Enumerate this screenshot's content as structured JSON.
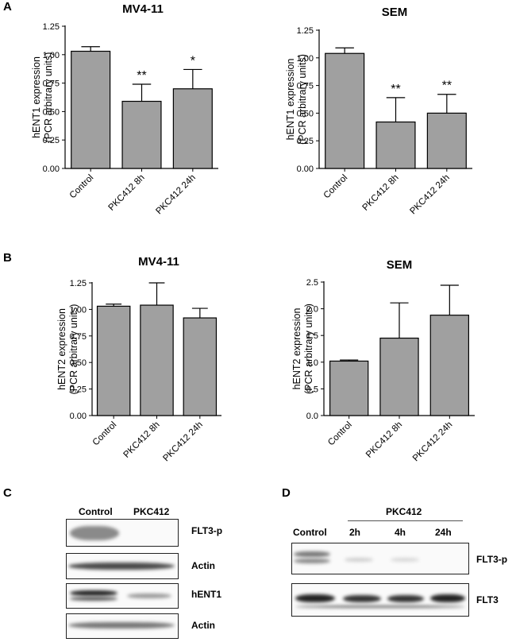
{
  "panels": {
    "A": "A",
    "B": "B",
    "C": "C",
    "D": "D"
  },
  "chart_data": [
    {
      "type": "bar",
      "title": "MV4-11",
      "categories": [
        "Control",
        "PKC412 8h",
        "PKC412 24h"
      ],
      "values": [
        1.03,
        0.59,
        0.7
      ],
      "errors": [
        0.04,
        0.15,
        0.17
      ],
      "significance": [
        "",
        "**",
        "*"
      ],
      "ylabel": "hENT1 expression",
      "ylabel2": "(PCR arbitrary units)",
      "ylim": [
        0,
        1.25
      ],
      "yticks": [
        "0.00",
        "0.25",
        "0.50",
        "0.75",
        "1.00",
        "1.25"
      ],
      "bar_color": "#a0a0a0"
    },
    {
      "type": "bar",
      "title": "SEM",
      "categories": [
        "Control",
        "PKC412 8h",
        "PKC412 24h"
      ],
      "values": [
        1.04,
        0.42,
        0.5
      ],
      "errors": [
        0.05,
        0.22,
        0.17
      ],
      "significance": [
        "",
        "**",
        "**"
      ],
      "ylabel": "hENT1 expression",
      "ylabel2": "(PCR arbitrary units)",
      "ylim": [
        0,
        1.25
      ],
      "yticks": [
        "0.00",
        "0.25",
        "0.50",
        "0.75",
        "1.00",
        "1.25"
      ],
      "bar_color": "#a0a0a0"
    },
    {
      "type": "bar",
      "title": "MV4-11",
      "categories": [
        "Control",
        "PKC412 8h",
        "PKC412 24h"
      ],
      "values": [
        1.03,
        1.04,
        0.92
      ],
      "errors": [
        0.02,
        0.21,
        0.09
      ],
      "significance": [
        "",
        "",
        ""
      ],
      "ylabel": "hENT2 expression",
      "ylabel2": "(PCR arbitrary units)",
      "ylim": [
        0,
        1.25
      ],
      "yticks": [
        "0.00",
        "0.25",
        "0.50",
        "0.75",
        "1.00",
        "1.25"
      ],
      "bar_color": "#a0a0a0"
    },
    {
      "type": "bar",
      "title": "SEM",
      "categories": [
        "Control",
        "PKC412 8h",
        "PKC412 24h"
      ],
      "values": [
        1.02,
        1.45,
        1.88
      ],
      "errors": [
        0.02,
        0.66,
        0.56
      ],
      "significance": [
        "",
        "",
        ""
      ],
      "ylabel": "hENT2 expression",
      "ylabel2": "(PCR arbitrary units)",
      "ylim": [
        0,
        2.5
      ],
      "yticks": [
        "0.0",
        "0.5",
        "1.0",
        "1.5",
        "2.0",
        "2.5"
      ],
      "bar_color": "#a0a0a0"
    }
  ],
  "blots": {
    "C": {
      "lanes": [
        "Control",
        "PKC412"
      ],
      "rows": [
        "FLT3-p",
        "Actin",
        "hENT1",
        "Actin"
      ]
    },
    "D": {
      "control": "Control",
      "group": "PKC412",
      "lanes": [
        "2h",
        "4h",
        "24h"
      ],
      "rows": [
        "FLT3-p",
        "FLT3"
      ]
    }
  }
}
